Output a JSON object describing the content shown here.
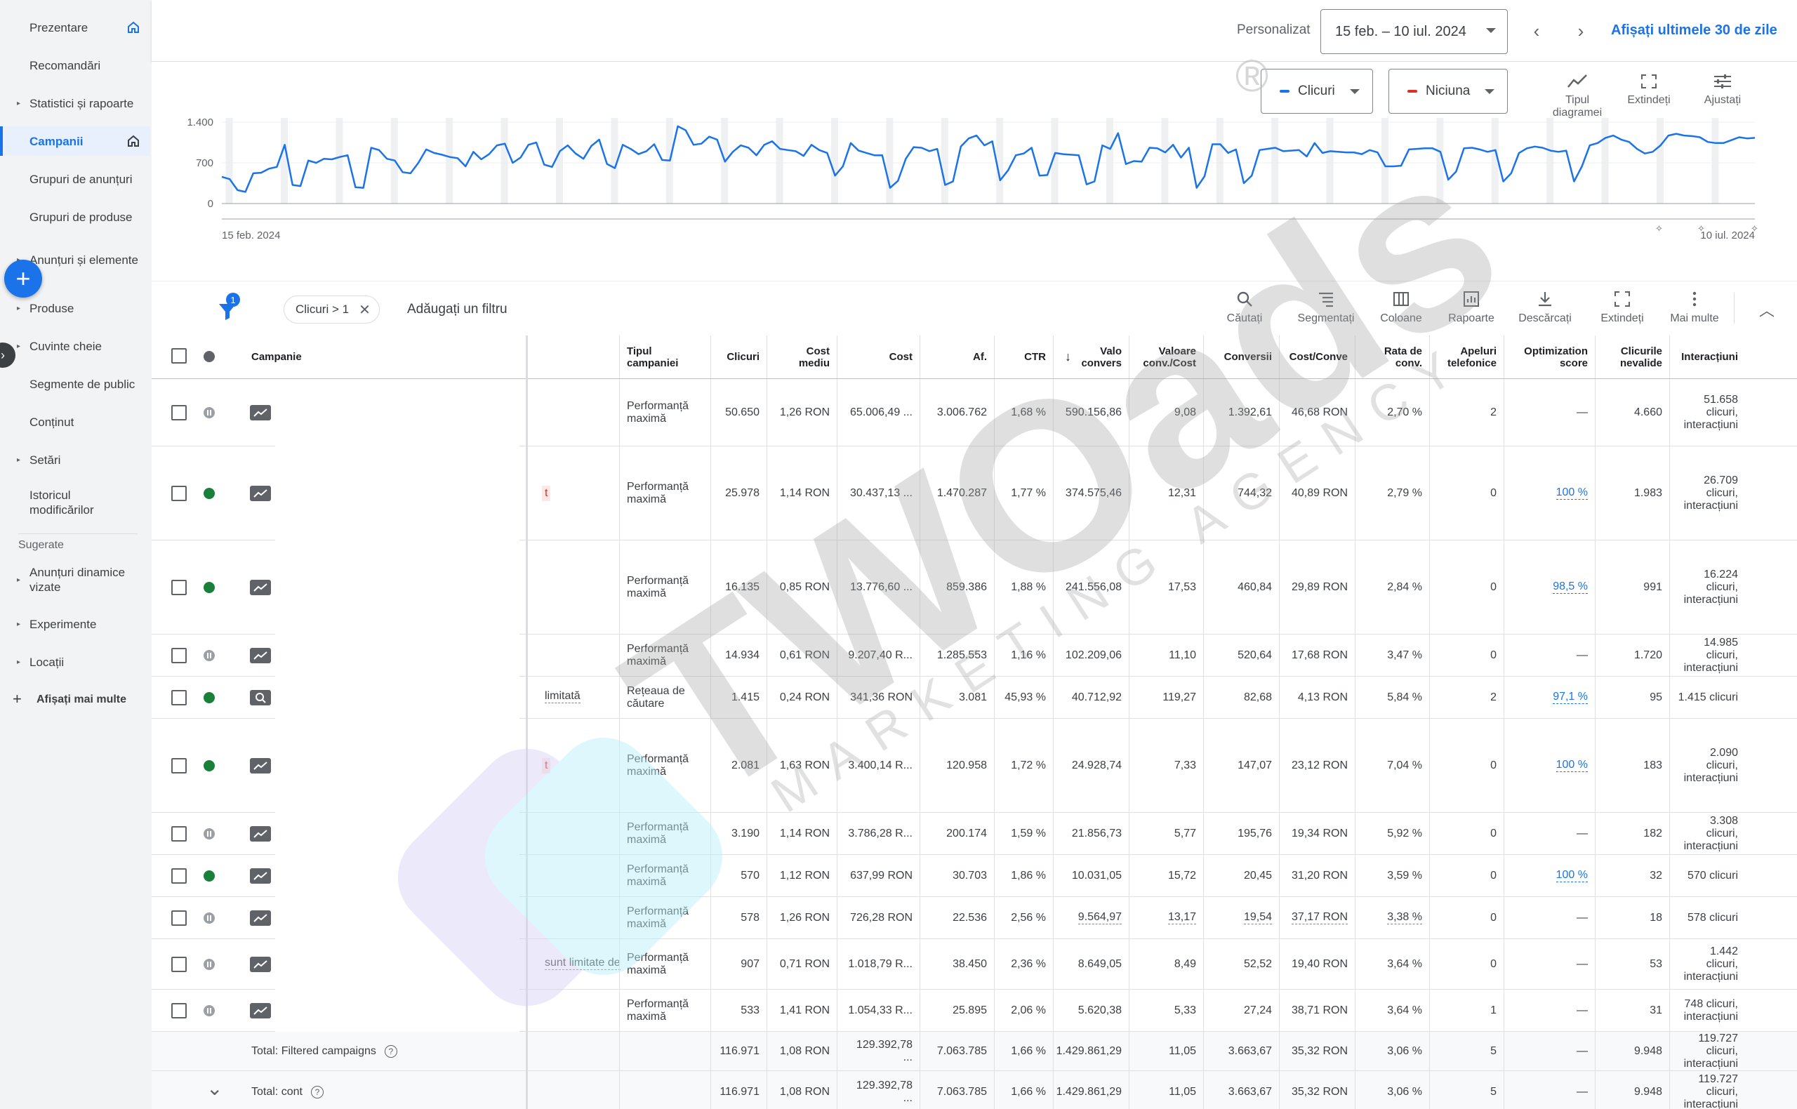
{
  "sidebar": {
    "items": [
      {
        "label": "Prezentare",
        "has_caret": false,
        "home_icon": true,
        "active": false
      },
      {
        "label": "Recomandări",
        "has_caret": false,
        "home_icon": false,
        "active": false
      },
      {
        "label": "Statistici și rapoarte",
        "has_caret": true,
        "home_icon": false,
        "active": false
      },
      {
        "label": "Campanii",
        "has_caret": false,
        "home_icon": true,
        "active": true
      },
      {
        "label": "Grupuri de anunțuri",
        "has_caret": false,
        "home_icon": false,
        "active": false
      },
      {
        "label": "Grupuri de produse",
        "has_caret": false,
        "home_icon": false,
        "active": false
      },
      {
        "label": "Anunțuri și elemente",
        "has_caret": true,
        "home_icon": false,
        "active": false
      },
      {
        "label": "Produse",
        "has_caret": true,
        "home_icon": false,
        "active": false
      },
      {
        "label": "Cuvinte cheie",
        "has_caret": true,
        "home_icon": false,
        "active": false
      },
      {
        "label": "Segmente de public",
        "has_caret": false,
        "home_icon": false,
        "active": false
      },
      {
        "label": "Conținut",
        "has_caret": false,
        "home_icon": false,
        "active": false
      },
      {
        "label": "Setări",
        "has_caret": true,
        "home_icon": false,
        "active": false
      },
      {
        "label": "Istoricul modificărilor",
        "has_caret": false,
        "home_icon": false,
        "active": false
      }
    ],
    "suggested_label": "Sugerate",
    "suggested_items": [
      {
        "label": "Anunțuri dinamice vizate",
        "has_caret": true
      },
      {
        "label": "Experimente",
        "has_caret": true
      },
      {
        "label": "Locații",
        "has_caret": true
      }
    ],
    "show_more_label": "Afișați mai multe"
  },
  "header": {
    "custom_label": "Personalizat",
    "date_range": "15 feb. – 10 iul. 2024",
    "last30_label": "Afișați ultimele 30 de zile"
  },
  "chart_controls": {
    "metric1": {
      "label": "Clicuri",
      "color": "#1a73e8"
    },
    "metric2": {
      "label": "Niciuna",
      "color": "#d93025"
    },
    "tools": [
      "Tipul diagramei",
      "Extindeți",
      "Ajustați"
    ]
  },
  "chart_data": {
    "type": "line",
    "series": [
      {
        "name": "Clicuri",
        "color": "#1a73e8",
        "values": [
          460,
          420,
          230,
          200,
          520,
          530,
          600,
          630,
          1010,
          320,
          300,
          740,
          700,
          770,
          760,
          800,
          830,
          280,
          270,
          960,
          920,
          770,
          740,
          540,
          520,
          700,
          930,
          870,
          840,
          800,
          780,
          640,
          890,
          760,
          850,
          1000,
          1030,
          700,
          790,
          1010,
          1050,
          670,
          630,
          900,
          1000,
          860,
          770,
          990,
          1100,
          680,
          610,
          1010,
          940,
          850,
          900,
          1020,
          750,
          740,
          1330,
          1260,
          1010,
          1030,
          1150,
          1100,
          720,
          890,
          1000,
          960,
          830,
          1010,
          1070,
          940,
          920,
          900,
          820,
          1010,
          920,
          870,
          480,
          640,
          1040,
          910,
          870,
          830,
          830,
          270,
          390,
          770,
          970,
          960,
          900,
          940,
          320,
          380,
          980,
          1120,
          1170,
          1000,
          1070,
          400,
          570,
          830,
          860,
          960,
          480,
          490,
          870,
          850,
          840,
          830,
          330,
          380,
          1000,
          940,
          1210,
          680,
          730,
          720,
          960,
          950,
          880,
          1010,
          790,
          960,
          270,
          470,
          1020,
          1020,
          870,
          930,
          350,
          480,
          920,
          940,
          960,
          900,
          910,
          920,
          810,
          1040,
          870,
          900,
          890,
          880,
          880,
          850,
          920,
          880,
          640,
          640,
          650,
          930,
          940,
          950,
          950,
          890,
          410,
          550,
          950,
          960,
          930,
          890,
          920,
          380,
          520,
          870,
          950,
          980,
          960,
          910,
          890,
          910,
          380,
          640,
          1000,
          1040,
          1130,
          1170,
          1100,
          1060,
          940,
          860,
          890,
          1000,
          1170,
          1200,
          1170,
          1160,
          1140,
          1060,
          1040,
          1040,
          1090,
          1140,
          1120,
          1130
        ]
      }
    ],
    "x_start_label": "15 feb. 2024",
    "x_end_label": "10 iul. 2024",
    "y_ticks": [
      "1.400",
      "700",
      "0"
    ],
    "ylim": [
      0,
      1400
    ]
  },
  "toolbar": {
    "filter_count": "1",
    "chip_label": "Clicuri > 1",
    "add_filter": "Adăugați un filtru",
    "tools": [
      "Căutați",
      "Segmentați",
      "Coloane",
      "Rapoarte",
      "Descărcați",
      "Extindeți",
      "Mai multe"
    ]
  },
  "table": {
    "headers": {
      "campaign": "Campanie",
      "type": "Tipul campaniei",
      "clicks": "Clicuri",
      "avg_cpc": "Cost mediu",
      "cost": "Cost",
      "impr": "Af.",
      "ctr": "CTR",
      "conv_value": "Valo convers",
      "value_cost": "Valoare conv./Cost",
      "conversions": "Conversii",
      "cost_conv": "Cost/Conve",
      "conv_rate": "Rata de conv.",
      "phone_calls": "Apeluri telefonice",
      "opt_score": "Optimization score",
      "invalid_clicks": "Clicurile nevalide",
      "interactions": "Interacțiuni"
    },
    "rows": [
      {
        "status": "paused",
        "icon": "pmax",
        "frag": "",
        "type": "Performanță maximă",
        "clicks": "50.650",
        "avg_cpc": "1,26 RON",
        "cost": "65.006,49 ...",
        "impr": "3.006.762",
        "ctr": "1,68 %",
        "conv_value": "590.156,86",
        "value_cost": "9,08",
        "conversions": "1.392,61",
        "cost_conv": "46,68 RON",
        "conv_rate": "2,70 %",
        "phone_calls": "2",
        "opt_score": "—",
        "invalid_clicks": "4.660",
        "interactions": "51.658 clicuri, interacțiuni"
      },
      {
        "status": "green",
        "icon": "pmax",
        "frag": "t",
        "type": "Performanță maximă",
        "clicks": "25.978",
        "avg_cpc": "1,14 RON",
        "cost": "30.437,13 ...",
        "impr": "1.470.287",
        "ctr": "1,77 %",
        "conv_value": "374.575,46",
        "value_cost": "12,31",
        "conversions": "744,32",
        "cost_conv": "40,89 RON",
        "conv_rate": "2,79 %",
        "phone_calls": "0",
        "opt_score": "100 %",
        "invalid_clicks": "1.983",
        "interactions": "26.709 clicuri, interacțiuni"
      },
      {
        "status": "green",
        "icon": "pmax",
        "frag": "",
        "type": "Performanță maximă",
        "clicks": "16.135",
        "avg_cpc": "0,85 RON",
        "cost": "13.776,60 ...",
        "impr": "859.386",
        "ctr": "1,88 %",
        "conv_value": "241.556,08",
        "value_cost": "17,53",
        "conversions": "460,84",
        "cost_conv": "29,89 RON",
        "conv_rate": "2,84 %",
        "phone_calls": "0",
        "opt_score": "98,5 %",
        "invalid_clicks": "991",
        "interactions": "16.224 clicuri, interacțiuni"
      },
      {
        "status": "paused",
        "icon": "pmax",
        "frag": "",
        "type": "Performanță maximă",
        "clicks": "14.934",
        "avg_cpc": "0,61 RON",
        "cost": "9.207,40 R...",
        "impr": "1.285.553",
        "ctr": "1,16 %",
        "conv_value": "102.209,06",
        "value_cost": "11,10",
        "conversions": "520,64",
        "cost_conv": "17,68 RON",
        "conv_rate": "3,47 %",
        "phone_calls": "0",
        "opt_score": "—",
        "invalid_clicks": "1.720",
        "interactions": "14.985 clicuri, interacțiuni"
      },
      {
        "status": "green",
        "icon": "search",
        "frag": "limitată",
        "type": "Rețeaua de căutare",
        "clicks": "1.415",
        "avg_cpc": "0,24 RON",
        "cost": "341,36 RON",
        "impr": "3.081",
        "ctr": "45,93 %",
        "conv_value": "40.712,92",
        "value_cost": "119,27",
        "conversions": "82,68",
        "cost_conv": "4,13 RON",
        "conv_rate": "5,84 %",
        "phone_calls": "2",
        "opt_score": "97,1 %",
        "invalid_clicks": "95",
        "interactions": "1.415 clicuri"
      },
      {
        "status": "green",
        "icon": "pmax",
        "frag": "t",
        "type": "Performanță maximă",
        "clicks": "2.081",
        "avg_cpc": "1,63 RON",
        "cost": "3.400,14 R...",
        "impr": "120.958",
        "ctr": "1,72 %",
        "conv_value": "24.928,74",
        "value_cost": "7,33",
        "conversions": "147,07",
        "cost_conv": "23,12 RON",
        "conv_rate": "7,04 %",
        "phone_calls": "0",
        "opt_score": "100 %",
        "invalid_clicks": "183",
        "interactions": "2.090 clicuri, interacțiuni"
      },
      {
        "status": "paused",
        "icon": "pmax",
        "frag": "",
        "type": "Performanță maximă",
        "clicks": "3.190",
        "avg_cpc": "1,14 RON",
        "cost": "3.786,28 R...",
        "impr": "200.174",
        "ctr": "1,59 %",
        "conv_value": "21.856,73",
        "value_cost": "5,77",
        "conversions": "195,76",
        "cost_conv": "19,34 RON",
        "conv_rate": "5,92 %",
        "phone_calls": "0",
        "opt_score": "—",
        "invalid_clicks": "182",
        "interactions": "3.308 clicuri, interacțiuni"
      },
      {
        "status": "green",
        "icon": "pmax",
        "frag": "",
        "type": "Performanță maximă",
        "clicks": "570",
        "avg_cpc": "1,12 RON",
        "cost": "637,99 RON",
        "impr": "30.703",
        "ctr": "1,86 %",
        "conv_value": "10.031,05",
        "value_cost": "15,72",
        "conversions": "20,45",
        "cost_conv": "31,20 RON",
        "conv_rate": "3,59 %",
        "phone_calls": "0",
        "opt_score": "100 %",
        "invalid_clicks": "32",
        "interactions": "570 clicuri"
      },
      {
        "status": "paused",
        "icon": "pmax",
        "frag": "",
        "type": "Performanță maximă",
        "clicks": "578",
        "avg_cpc": "1,26 RON",
        "cost": "726,28 RON",
        "impr": "22.536",
        "ctr": "2,56 %",
        "conv_value": "9.564,97",
        "value_cost": "13,17",
        "conversions": "19,54",
        "cost_conv": "37,17 RON",
        "conv_rate": "3,38 %",
        "phone_calls": "0",
        "opt_score": "—",
        "invalid_clicks": "18",
        "interactions": "578 clicuri"
      },
      {
        "status": "paused",
        "icon": "pmax",
        "frag": "sunt limitate de",
        "type": "Performanță maximă",
        "clicks": "907",
        "avg_cpc": "0,71 RON",
        "cost": "1.018,79 R...",
        "impr": "38.450",
        "ctr": "2,36 %",
        "conv_value": "8.649,05",
        "value_cost": "8,49",
        "conversions": "52,52",
        "cost_conv": "19,40 RON",
        "conv_rate": "3,64 %",
        "phone_calls": "0",
        "opt_score": "—",
        "invalid_clicks": "53",
        "interactions": "1.442 clicuri, interacțiuni"
      },
      {
        "status": "paused",
        "icon": "pmax",
        "frag": "",
        "type": "Performanță maximă",
        "clicks": "533",
        "avg_cpc": "1,41 RON",
        "cost": "1.054,33 R...",
        "impr": "25.895",
        "ctr": "2,06 %",
        "conv_value": "5.620,38",
        "value_cost": "5,33",
        "conversions": "27,24",
        "cost_conv": "38,71 RON",
        "conv_rate": "3,64 %",
        "phone_calls": "1",
        "opt_score": "—",
        "invalid_clicks": "31",
        "interactions": "748 clicuri, interacțiuni"
      }
    ],
    "totals": [
      {
        "label": "Total: Filtered campaigns",
        "clicks": "116.971",
        "avg_cpc": "1,08 RON",
        "cost": "129.392,78 ...",
        "impr": "7.063.785",
        "ctr": "1,66 %",
        "conv_value": "1.429.861,29",
        "value_cost": "11,05",
        "conversions": "3.663,67",
        "cost_conv": "35,32 RON",
        "conv_rate": "3,06 %",
        "phone_calls": "5",
        "opt_score": "—",
        "invalid_clicks": "9.948",
        "interactions": "119.727 clicuri, interacțiuni"
      },
      {
        "label": "Total: cont",
        "clicks": "116.971",
        "avg_cpc": "1,08 RON",
        "cost": "129.392,78 ...",
        "impr": "7.063.785",
        "ctr": "1,66 %",
        "conv_value": "1.429.861,29",
        "value_cost": "11,05",
        "conversions": "3.663,67",
        "cost_conv": "35,32 RON",
        "conv_rate": "3,06 %",
        "phone_calls": "5",
        "opt_score": "—",
        "invalid_clicks": "9.948",
        "interactions": "119.727 clicuri, interacțiuni"
      }
    ]
  },
  "watermark": {
    "brand": "TWOads",
    "tagline": "MARKETING AGENCY",
    "mark": "®"
  }
}
